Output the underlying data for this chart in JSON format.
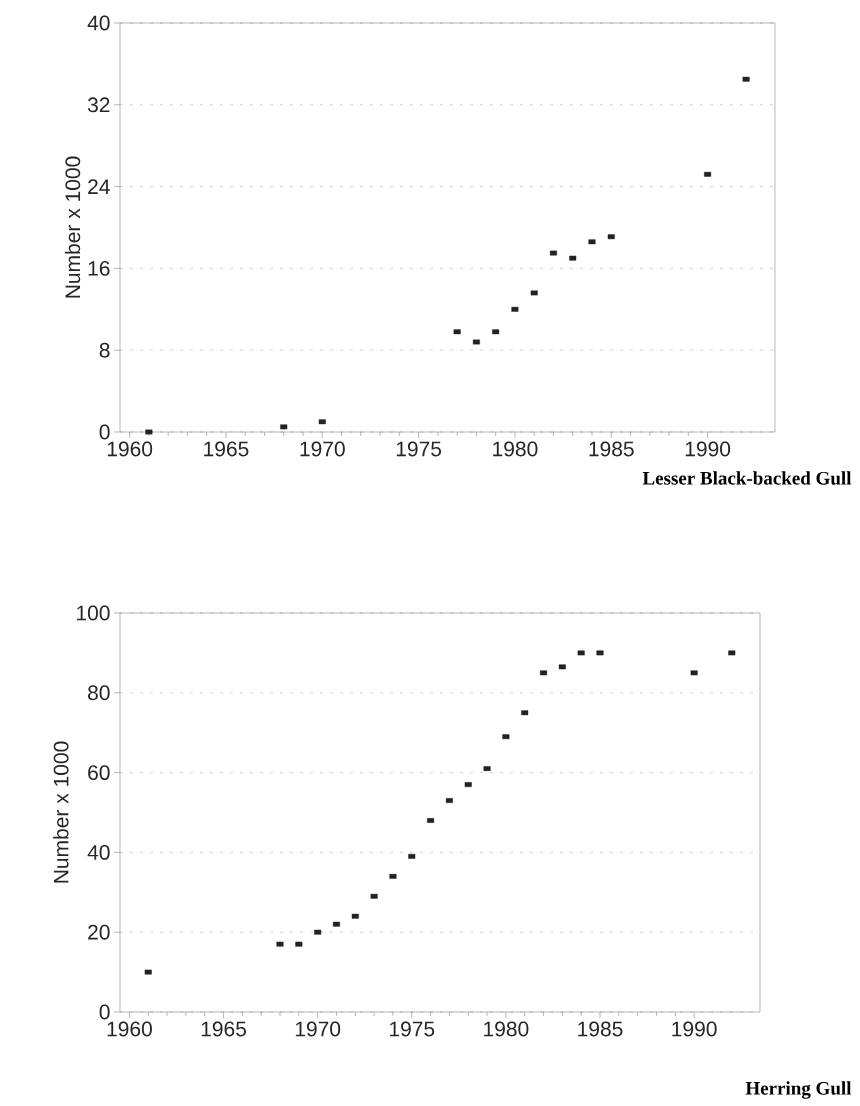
{
  "chart_data": [
    {
      "type": "scatter",
      "title": "Lesser Black-backed Gull",
      "ylabel": "Number x 1000",
      "x": [
        1961,
        1968,
        1970,
        1977,
        1978,
        1979,
        1980,
        1981,
        1982,
        1983,
        1984,
        1985,
        1990,
        1992
      ],
      "values": [
        0,
        0.5,
        1,
        9.8,
        8.8,
        9.8,
        12,
        13.6,
        17.5,
        17,
        18.6,
        19.1,
        25.2,
        34.5
      ],
      "color": "#222222",
      "marker": "square",
      "grid": "y",
      "xlim": [
        1959.5,
        1993.5
      ],
      "xticks": [
        1960,
        1965,
        1970,
        1975,
        1980,
        1985,
        1990
      ],
      "ylim": [
        0,
        40
      ],
      "yticks": [
        0,
        8,
        16,
        24,
        32,
        40
      ]
    },
    {
      "type": "scatter",
      "title": "Herring Gull",
      "ylabel": "Number x 1000",
      "x": [
        1961,
        1968,
        1969,
        1970,
        1971,
        1972,
        1973,
        1974,
        1975,
        1976,
        1977,
        1978,
        1979,
        1980,
        1981,
        1982,
        1983,
        1984,
        1985,
        1990,
        1992
      ],
      "values": [
        10,
        17,
        17,
        20,
        22,
        24,
        29,
        34,
        39,
        48,
        53,
        57,
        61,
        69,
        75,
        85,
        86.5,
        90,
        90,
        85,
        90
      ],
      "color": "#222222",
      "marker": "square",
      "grid": "y",
      "xlim": [
        1959.5,
        1993.5
      ],
      "xticks": [
        1960,
        1965,
        1970,
        1975,
        1980,
        1985,
        1990
      ],
      "ylim": [
        0,
        100
      ],
      "yticks": [
        0,
        20,
        40,
        60,
        80,
        100
      ]
    }
  ]
}
